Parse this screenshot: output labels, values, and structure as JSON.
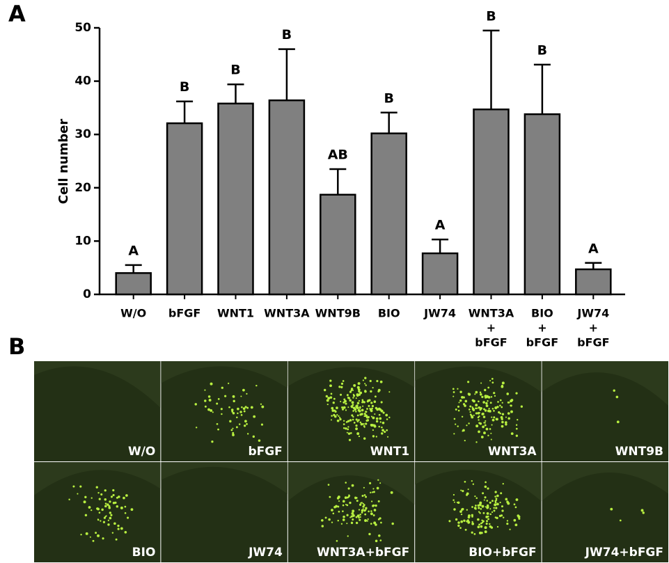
{
  "panel_labels": [
    "A",
    "B"
  ],
  "chart_data": {
    "type": "bar",
    "y_label": "Cell number",
    "categories": [
      [
        "W/O"
      ],
      [
        "bFGF"
      ],
      [
        "WNT1"
      ],
      [
        "WNT3A"
      ],
      [
        "WNT9B"
      ],
      [
        "BIO"
      ],
      [
        "JW74"
      ],
      [
        "WNT3A",
        "+",
        "bFGF"
      ],
      [
        "BIO",
        "+",
        "bFGF"
      ],
      [
        "JW74",
        "+",
        "bFGF"
      ]
    ],
    "values": [
      4.0,
      32.1,
      35.8,
      36.4,
      18.7,
      30.2,
      7.7,
      34.7,
      33.8,
      4.7
    ],
    "errors": [
      1.5,
      4.1,
      3.6,
      9.6,
      4.8,
      3.9,
      2.6,
      14.8,
      9.3,
      1.2
    ],
    "annotations": [
      "A",
      "B",
      "B",
      "B",
      "AB",
      "B",
      "A",
      "B",
      "B",
      "A"
    ],
    "color": "#808080",
    "ylim": [
      0,
      50
    ],
    "yticks": [
      0,
      10,
      20,
      30,
      40,
      50
    ]
  },
  "images": {
    "labels": [
      "W/O",
      "bFGF",
      "WNT1",
      "WNT3A",
      "WNT9B",
      "BIO",
      "JW74",
      "WNT3A+bFGF",
      "BIO+bFGF",
      "JW74+bFGF"
    ]
  }
}
